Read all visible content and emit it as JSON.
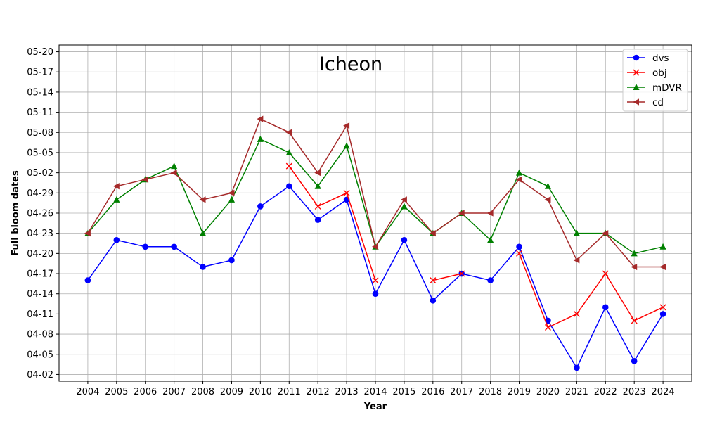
{
  "chart_data": {
    "type": "line",
    "title": "Icheon",
    "xlabel": "Year",
    "ylabel": "Full bloom dates",
    "x": [
      "2004",
      "2005",
      "2006",
      "2007",
      "2008",
      "2009",
      "2010",
      "2011",
      "2012",
      "2013",
      "2014",
      "2015",
      "2016",
      "2017",
      "2018",
      "2019",
      "2020",
      "2021",
      "2022",
      "2023",
      "2024"
    ],
    "y_ticks": [
      "04-02",
      "04-05",
      "04-08",
      "04-11",
      "04-14",
      "04-17",
      "04-20",
      "04-23",
      "04-26",
      "04-29",
      "05-02",
      "05-05",
      "05-08",
      "05-11",
      "05-14",
      "05-17",
      "05-20"
    ],
    "ylim": [
      "04-01",
      "05-21"
    ],
    "grid": true,
    "legend_position": "top-right",
    "series": [
      {
        "name": "dvs",
        "color": "#0000ff",
        "marker": "circle",
        "values": [
          "04-16",
          "04-22",
          "04-21",
          "04-21",
          "04-18",
          "04-19",
          "04-27",
          "04-30",
          "04-25",
          "04-28",
          "04-14",
          "04-22",
          "04-13",
          "04-17",
          "04-16",
          "04-21",
          "04-10",
          "04-03",
          "04-12",
          "04-04",
          "04-11"
        ]
      },
      {
        "name": "obj",
        "color": "#ff0000",
        "marker": "x",
        "values": [
          null,
          null,
          null,
          null,
          null,
          null,
          null,
          "05-03",
          "04-27",
          "04-29",
          "04-16",
          null,
          "04-16",
          "04-17",
          null,
          "04-20",
          "04-09",
          "04-11",
          "04-17",
          "04-10",
          "04-12"
        ]
      },
      {
        "name": "mDVR",
        "color": "#008000",
        "marker": "triangle-up",
        "values": [
          "04-23",
          "04-28",
          "05-01",
          "05-03",
          "04-23",
          "04-28",
          "05-07",
          "05-05",
          "04-30",
          "05-06",
          "04-21",
          "04-27",
          "04-23",
          "04-26",
          "04-22",
          "05-02",
          "04-30",
          "04-23",
          "04-23",
          "04-20",
          "04-21"
        ]
      },
      {
        "name": "cd",
        "color": "#a52a2a",
        "marker": "triangle-left",
        "values": [
          "04-23",
          "04-30",
          "05-01",
          "05-02",
          "04-28",
          "04-29",
          "05-10",
          "05-08",
          "05-02",
          "05-09",
          "04-21",
          "04-28",
          "04-23",
          "04-26",
          "04-26",
          "05-01",
          "04-28",
          "04-19",
          "04-23",
          "04-18",
          "04-18"
        ]
      }
    ]
  }
}
